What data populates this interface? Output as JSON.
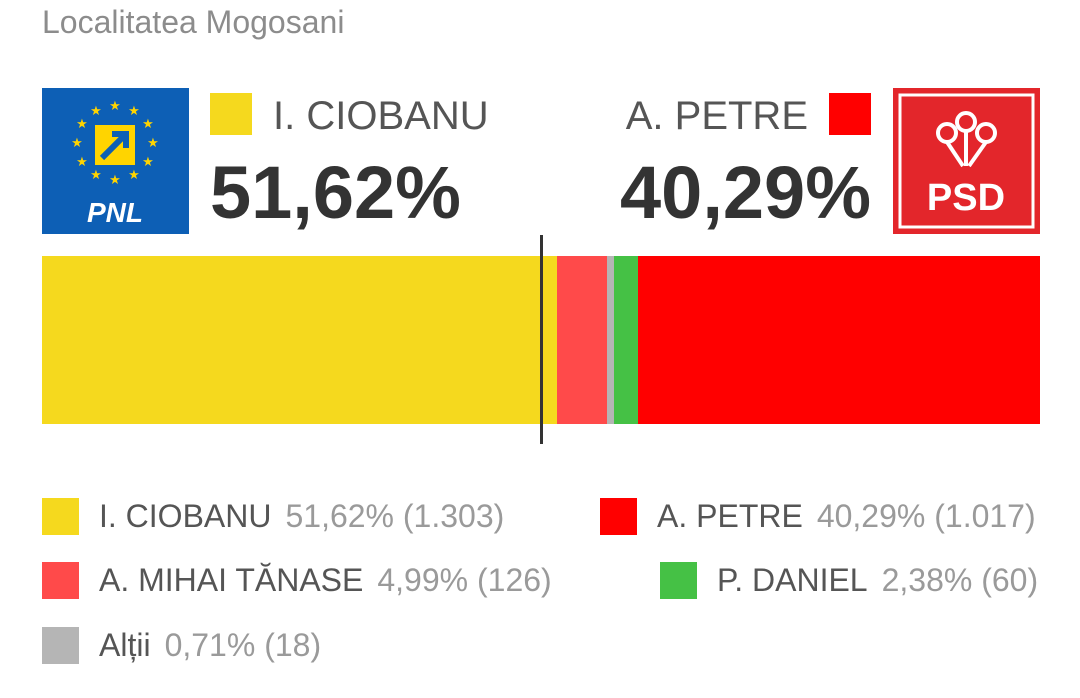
{
  "subtitle": "Localitatea Mogosani",
  "colors": {
    "ciobanu": "#f5d91e",
    "petre": "#ff0000",
    "mihai": "#ff4a4a",
    "daniel": "#45c145",
    "altii": "#b5b5b5",
    "pnl_blue": "#0d5fb5",
    "psd_red": "#e3262b"
  },
  "logos": {
    "left": {
      "text": "PNL",
      "icon": "pnl-logo-icon"
    },
    "right": {
      "text": "PSD",
      "icon": "psd-logo-icon"
    }
  },
  "lead": {
    "left": {
      "name": "I. CIOBANU",
      "percent": "51,62%"
    },
    "right": {
      "name": "A. PETRE",
      "percent": "40,29%"
    }
  },
  "chart_data": {
    "type": "bar",
    "stacked": true,
    "orientation": "horizontal",
    "title": "",
    "xlabel": "",
    "ylabel": "",
    "xlim": [
      0,
      100
    ],
    "grid": false,
    "legend": "bottom",
    "bar_order": [
      "I. CIOBANU",
      "A. MIHAI TĂNASE",
      "Alții",
      "P. DANIEL",
      "A. PETRE"
    ],
    "series": [
      {
        "name": "I. CIOBANU",
        "value": 51.62,
        "votes": 1303,
        "label": "51,62% (1.303)",
        "color": "#f5d91e"
      },
      {
        "name": "A. PETRE",
        "value": 40.29,
        "votes": 1017,
        "label": "40,29% (1.017)",
        "color": "#ff0000"
      },
      {
        "name": "A. MIHAI TĂNASE",
        "value": 4.99,
        "votes": 126,
        "label": "4,99% (126)",
        "color": "#ff4a4a"
      },
      {
        "name": "P. DANIEL",
        "value": 2.38,
        "votes": 60,
        "label": "2,38% (60)",
        "color": "#45c145"
      },
      {
        "name": "Alții",
        "value": 0.71,
        "votes": 18,
        "label": "0,71% (18)",
        "color": "#b5b5b5"
      }
    ],
    "reference_line": {
      "value": 50
    }
  }
}
